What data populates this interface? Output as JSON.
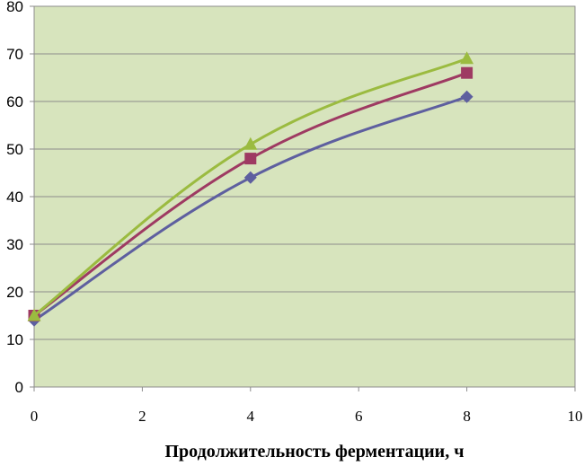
{
  "chart_data": {
    "type": "line",
    "title": "",
    "xlabel": "Продолжительность ферментации, ч",
    "ylabel": "",
    "xlim": [
      0,
      10
    ],
    "ylim": [
      0,
      80
    ],
    "x_ticks": [
      "0",
      "2",
      "4",
      "6",
      "8",
      "10"
    ],
    "y_ticks": [
      "0",
      "10",
      "20",
      "30",
      "40",
      "50",
      "60",
      "70",
      "80"
    ],
    "grid": "horizontal",
    "plot_background": "#d7e4bd",
    "legend": "none",
    "series": [
      {
        "color": "#5e5f9f",
        "marker": "diamond",
        "points": [
          [
            0,
            14
          ],
          [
            4,
            44
          ],
          [
            8,
            61
          ]
        ]
      },
      {
        "color": "#9e3a62",
        "marker": "square",
        "points": [
          [
            0,
            15
          ],
          [
            4,
            48
          ],
          [
            8,
            66
          ]
        ]
      },
      {
        "color": "#9bbb40",
        "marker": "triangle",
        "points": [
          [
            0,
            15
          ],
          [
            4,
            51
          ],
          [
            8,
            69
          ]
        ]
      }
    ]
  }
}
